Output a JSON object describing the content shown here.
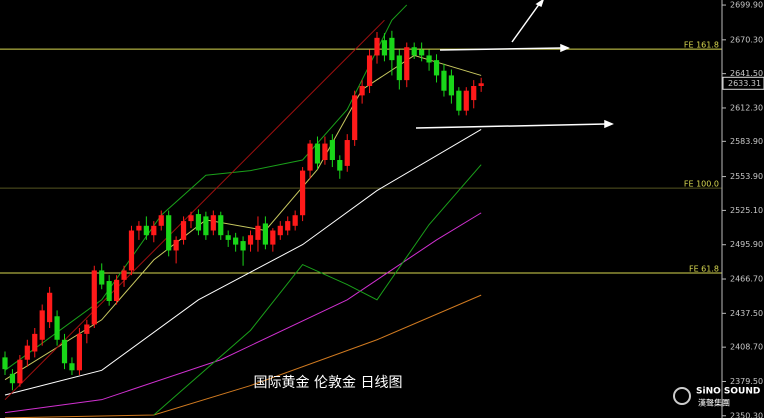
{
  "chart_data": {
    "type": "candlestick",
    "title": "国际黄金 伦敦金 日线图",
    "brand": {
      "name": "SiNO SOUND",
      "sub": "漢聲集團"
    },
    "ylim": [
      2348.4,
      2704.2
    ],
    "yticks": [
      {
        "value": 2699.9,
        "label": "2699.90"
      },
      {
        "value": 2670.3,
        "label": "2670.30"
      },
      {
        "value": 2641.5,
        "label": "2641.50"
      },
      {
        "value": 2612.3,
        "label": "2612.30"
      },
      {
        "value": 2583.9,
        "label": "2583.90"
      },
      {
        "value": 2553.9,
        "label": "2553.90"
      },
      {
        "value": 2525.1,
        "label": "2525.10"
      },
      {
        "value": 2495.9,
        "label": "2495.90"
      },
      {
        "value": 2466.7,
        "label": "2466.70"
      },
      {
        "value": 2437.5,
        "label": "2437.50"
      },
      {
        "value": 2408.7,
        "label": "2408.70"
      },
      {
        "value": 2379.5,
        "label": "2379.50"
      },
      {
        "value": 2350.3,
        "label": "2350.30"
      }
    ],
    "last_price": 2633.31,
    "up_color": "#ff1a1a",
    "down_color": "#19d619",
    "levels": [
      {
        "label": "FE 161.8",
        "value": 2662.4,
        "color": "#d8d850"
      },
      {
        "label": "FE 100.0",
        "value": 2544.1,
        "color": "#555522"
      },
      {
        "label": "FE 61.8",
        "value": 2471.8,
        "color": "#d8d850"
      }
    ],
    "ohlc": [
      [
        2400,
        2405,
        2385,
        2390
      ],
      [
        2386,
        2390,
        2372,
        2378
      ],
      [
        2378,
        2402,
        2375,
        2398
      ],
      [
        2398,
        2415,
        2392,
        2410
      ],
      [
        2405,
        2425,
        2400,
        2420
      ],
      [
        2415,
        2445,
        2410,
        2440
      ],
      [
        2430,
        2460,
        2425,
        2455
      ],
      [
        2435,
        2440,
        2410,
        2415
      ],
      [
        2415,
        2420,
        2390,
        2395
      ],
      [
        2395,
        2400,
        2385,
        2389
      ],
      [
        2389,
        2425,
        2385,
        2420
      ],
      [
        2420,
        2432,
        2412,
        2428
      ],
      [
        2428,
        2478,
        2425,
        2474
      ],
      [
        2474,
        2480,
        2458,
        2462
      ],
      [
        2465,
        2470,
        2444,
        2448
      ],
      [
        2448,
        2470,
        2445,
        2466
      ],
      [
        2466,
        2478,
        2460,
        2474
      ],
      [
        2474,
        2512,
        2470,
        2508
      ],
      [
        2508,
        2516,
        2500,
        2512
      ],
      [
        2512,
        2520,
        2500,
        2504
      ],
      [
        2504,
        2516,
        2498,
        2512
      ],
      [
        2512,
        2525,
        2508,
        2521
      ],
      [
        2521,
        2525,
        2486,
        2491
      ],
      [
        2491,
        2503,
        2480,
        2500
      ],
      [
        2500,
        2520,
        2496,
        2516
      ],
      [
        2516,
        2524,
        2510,
        2521
      ],
      [
        2522,
        2526,
        2504,
        2508
      ],
      [
        2520,
        2524,
        2500,
        2504
      ],
      [
        2508,
        2525,
        2504,
        2521
      ],
      [
        2521,
        2524,
        2500,
        2504
      ],
      [
        2504,
        2508,
        2494,
        2500
      ],
      [
        2502,
        2506,
        2490,
        2496
      ],
      [
        2499,
        2503,
        2478,
        2491
      ],
      [
        2496,
        2508,
        2490,
        2504
      ],
      [
        2500,
        2520,
        2490,
        2512
      ],
      [
        2514,
        2520,
        2492,
        2496
      ],
      [
        2496,
        2510,
        2490,
        2508
      ],
      [
        2504,
        2516,
        2500,
        2512
      ],
      [
        2508,
        2520,
        2504,
        2516
      ],
      [
        2512,
        2525,
        2508,
        2521
      ],
      [
        2521,
        2562,
        2516,
        2559
      ],
      [
        2559,
        2585,
        2552,
        2582
      ],
      [
        2582,
        2588,
        2560,
        2565
      ],
      [
        2568,
        2588,
        2564,
        2582
      ],
      [
        2585,
        2590,
        2562,
        2568
      ],
      [
        2568,
        2572,
        2552,
        2559
      ],
      [
        2563,
        2590,
        2558,
        2585
      ],
      [
        2585,
        2627,
        2580,
        2623
      ],
      [
        2623,
        2636,
        2616,
        2631
      ],
      [
        2631,
        2662,
        2625,
        2657
      ],
      [
        2657,
        2677,
        2650,
        2672
      ],
      [
        2670,
        2676,
        2652,
        2657
      ],
      [
        2672,
        2678,
        2640,
        2653
      ],
      [
        2657,
        2662,
        2628,
        2636
      ],
      [
        2636,
        2668,
        2630,
        2664
      ],
      [
        2664,
        2668,
        2654,
        2657
      ],
      [
        2662,
        2668,
        2652,
        2657
      ],
      [
        2657,
        2662,
        2644,
        2651
      ],
      [
        2653,
        2658,
        2634,
        2640
      ],
      [
        2644,
        2650,
        2622,
        2627
      ],
      [
        2640,
        2645,
        2616,
        2623
      ],
      [
        2627,
        2630,
        2606,
        2610
      ],
      [
        2610,
        2630,
        2606,
        2627
      ],
      [
        2619,
        2636,
        2612,
        2631
      ],
      [
        2631,
        2638,
        2626,
        2633.31
      ]
    ],
    "series": [
      {
        "color": "#ffffff",
        "x": [
          0,
          13,
          26,
          40,
          50,
          64
        ],
        "values": [
          2368,
          2389,
          2449,
          2496,
          2542,
          2594
        ]
      },
      {
        "color": "#d030d0",
        "x": [
          0,
          13,
          29,
          46,
          58,
          64
        ],
        "values": [
          2353,
          2364,
          2398,
          2449,
          2500,
          2523
        ]
      },
      {
        "color": "#d07a20",
        "x": [
          0,
          20,
          33,
          50,
          64
        ],
        "values": [
          2348.5,
          2351,
          2376,
          2415,
          2453
        ]
      },
      {
        "color": "#1aa01a",
        "x": [
          0,
          13,
          21,
          27,
          33,
          40,
          46,
          52,
          54
        ],
        "values": [
          2389,
          2449,
          2521,
          2555,
          2559,
          2568,
          2611,
          2687,
          2700
        ]
      },
      {
        "color": "#1aa01a",
        "x": [
          20,
          33,
          40,
          46,
          50,
          57,
          64
        ],
        "values": [
          2351,
          2423,
          2479,
          2462,
          2449,
          2513,
          2564
        ]
      },
      {
        "color": "#c8c860",
        "x": [
          0,
          13,
          20,
          27,
          35,
          42,
          48,
          55,
          64
        ],
        "values": [
          2381,
          2432,
          2483,
          2517,
          2508,
          2560,
          2628,
          2657,
          2640
        ]
      },
      {
        "color": "#a01010",
        "x": [
          0,
          51
        ],
        "values": [
          2364,
          2687
        ]
      }
    ]
  }
}
